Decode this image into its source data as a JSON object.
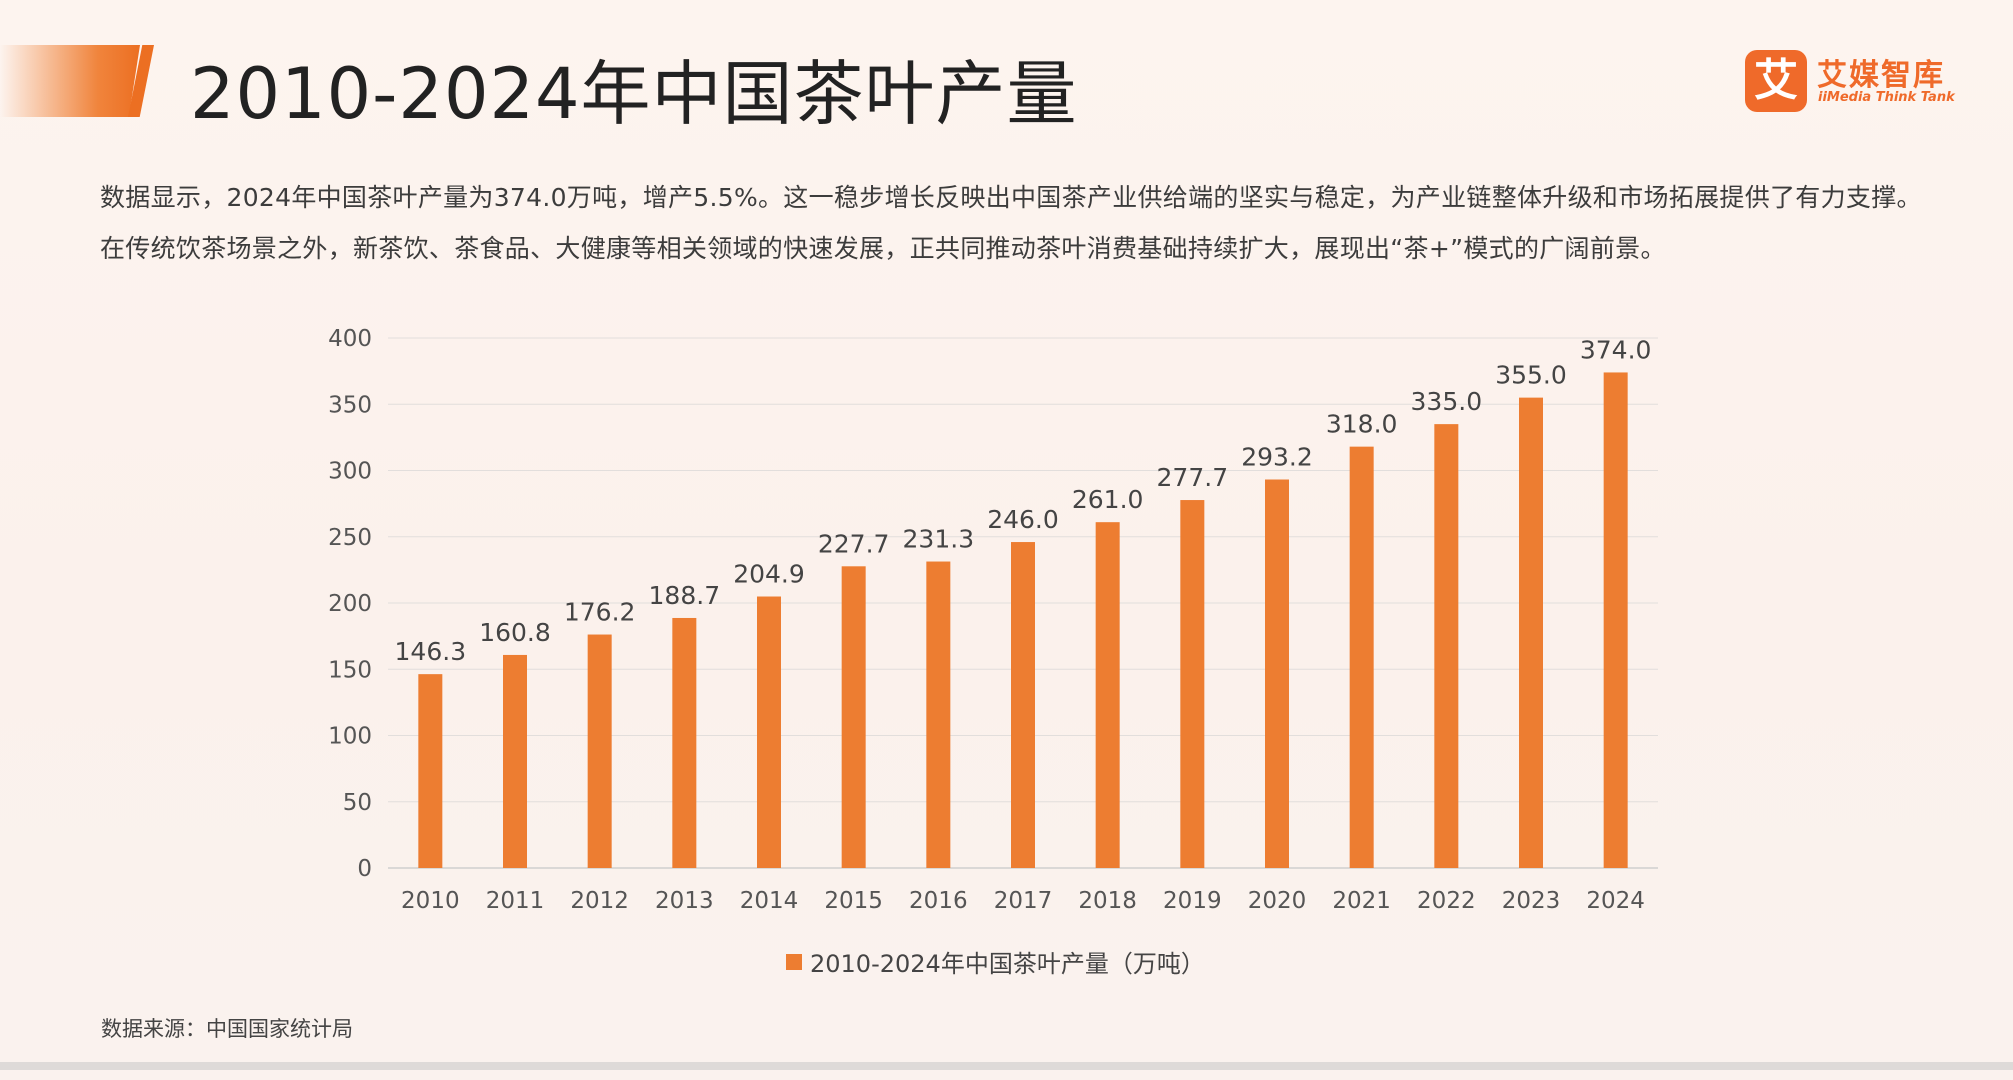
{
  "header": {
    "title": "2010-2024年中国茶叶产量",
    "accent_color": "#ec6f22"
  },
  "logo": {
    "mark_char": "艾",
    "name": "艾媒智库",
    "sub": "iiMedia Think Tank",
    "color": "#ef6a2a"
  },
  "summary": "数据显示，2024年中国茶叶产量为374.0万吨，增产5.5%。这一稳步增长反映出中国茶产业供给端的坚实与稳定，为产业链整体升级和市场拓展提供了有力支撑。在传统饮茶场景之外，新茶饮、茶食品、大健康等相关领域的快速发展，正共同推动茶叶消费基础持续扩大，展现出“茶+”模式的广阔前景。",
  "chart_data": {
    "type": "bar",
    "categories": [
      "2010",
      "2011",
      "2012",
      "2013",
      "2014",
      "2015",
      "2016",
      "2017",
      "2018",
      "2019",
      "2020",
      "2021",
      "2022",
      "2023",
      "2024"
    ],
    "series": [
      {
        "name": "2010-2024年中国茶叶产量（万吨）",
        "values": [
          146.3,
          160.8,
          176.2,
          188.7,
          204.9,
          227.7,
          231.3,
          246.0,
          261.0,
          277.7,
          293.2,
          318.0,
          335.0,
          355.0,
          374.0
        ],
        "labels": [
          "146.3",
          "160.8",
          "176.2",
          "188.7",
          "204.9",
          "227.7",
          "231.3",
          "246.0",
          "261.0",
          "277.7",
          "293.2",
          "318.0",
          "335.0",
          "355.0",
          "374.0"
        ],
        "color": "#ed7d31"
      }
    ],
    "ylim": [
      0,
      400
    ],
    "yticks": [
      0,
      50,
      100,
      150,
      200,
      250,
      300,
      350,
      400
    ],
    "grid": true,
    "legend_position": "bottom-center",
    "xlabel": "",
    "ylabel": ""
  },
  "source": "数据来源：中国国家统计局"
}
